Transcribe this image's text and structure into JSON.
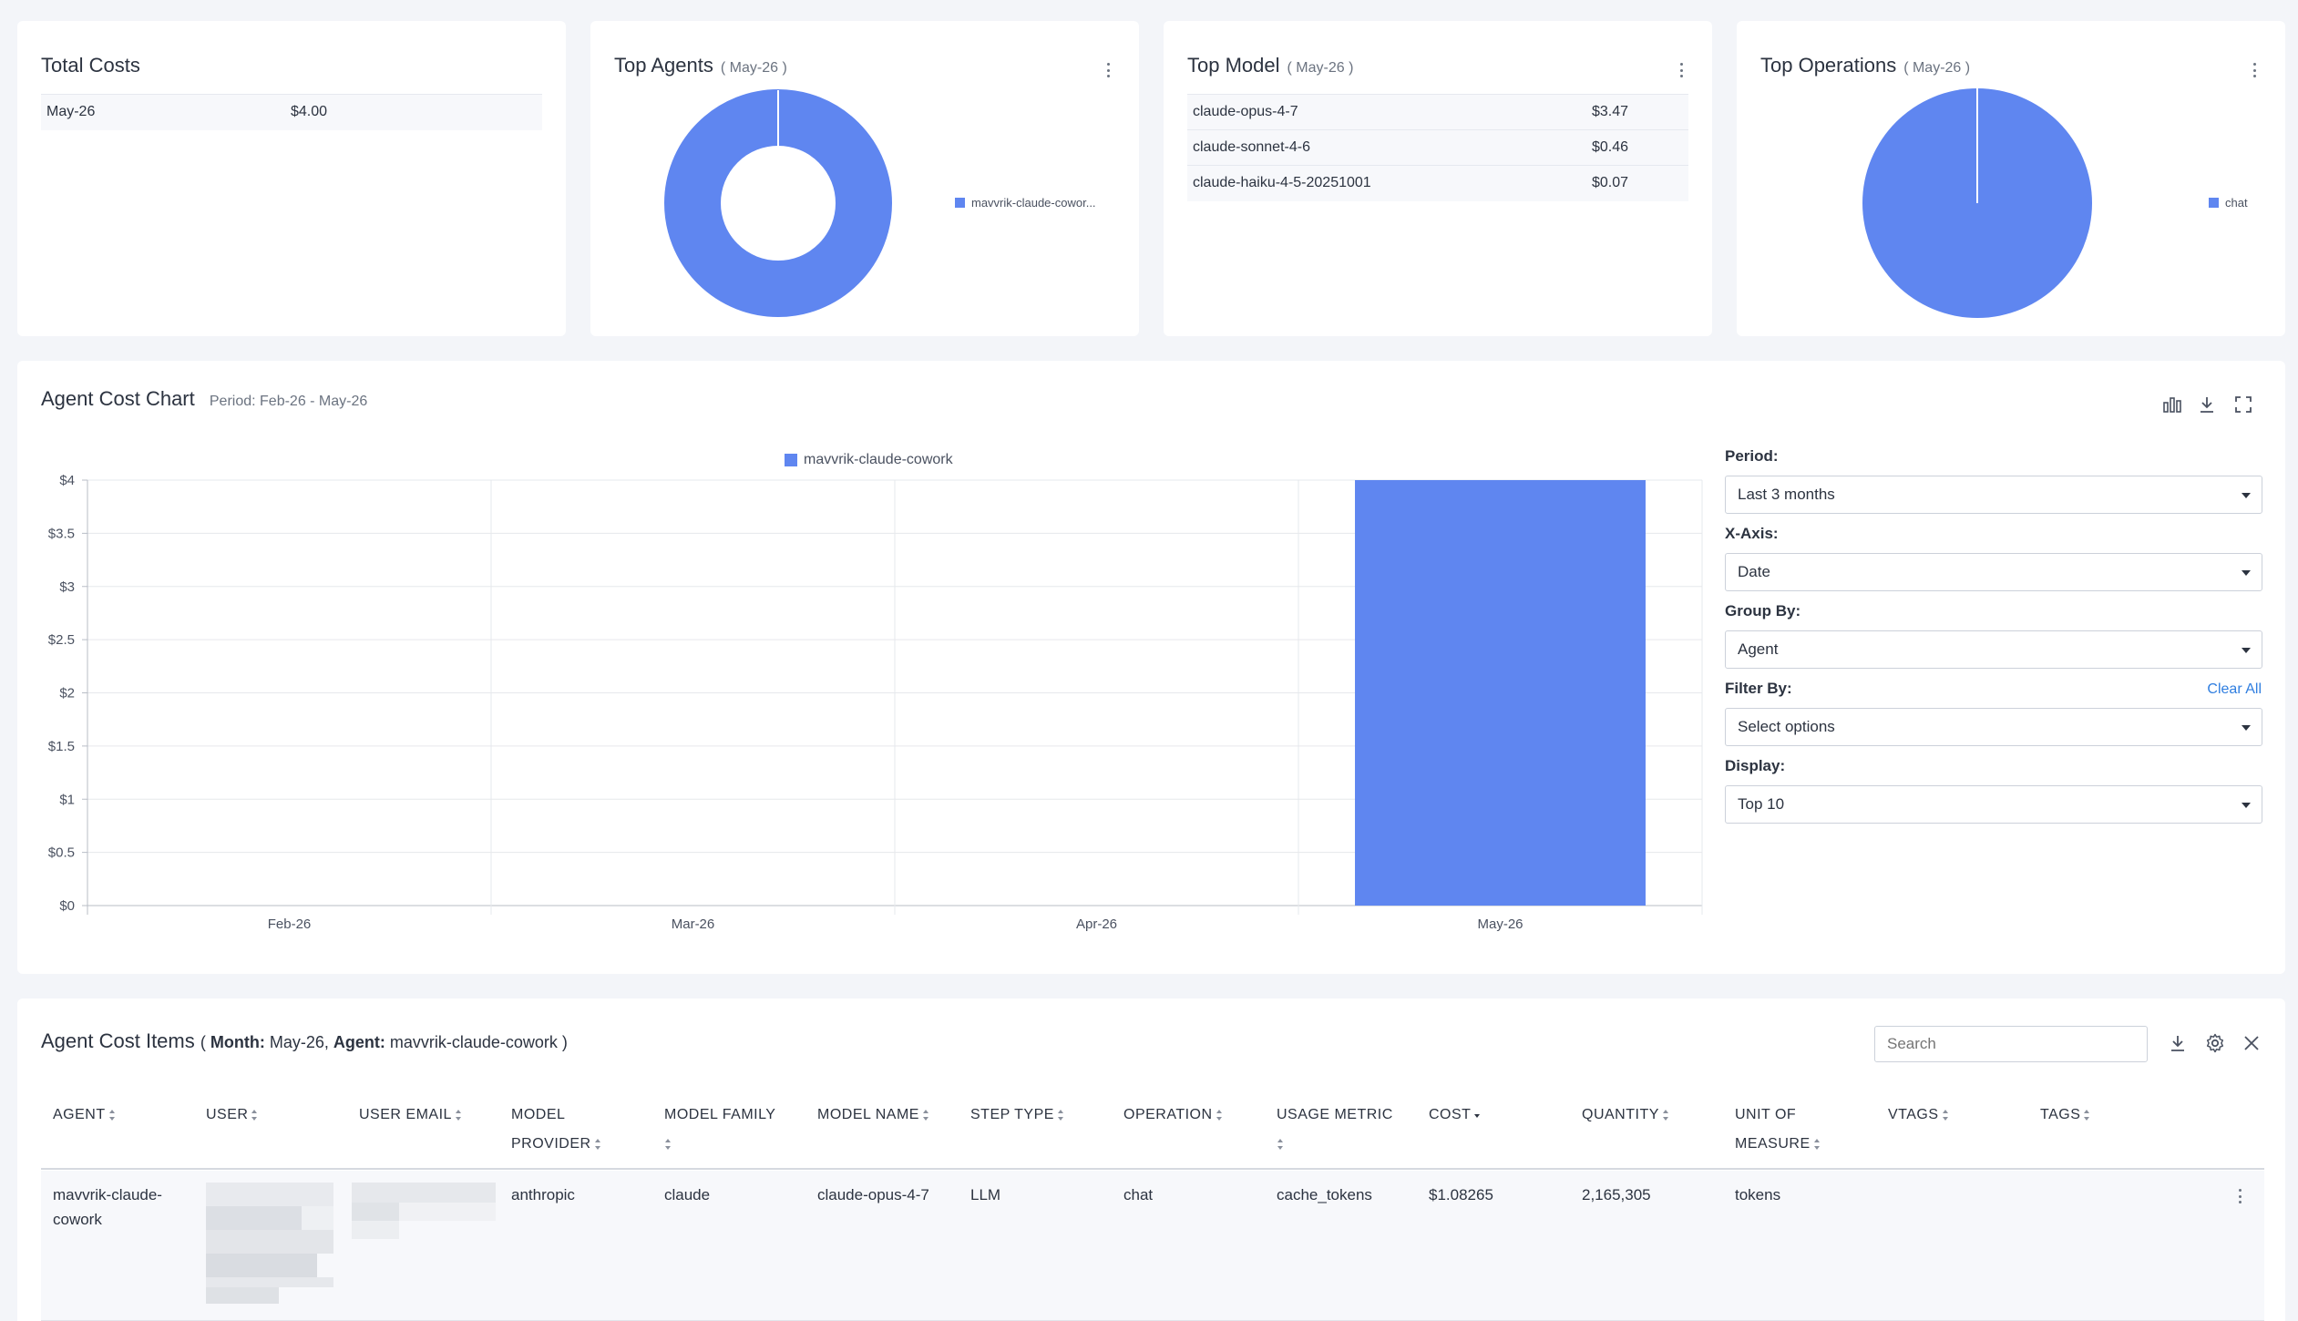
{
  "colors": {
    "accent": "#5f86f0",
    "link": "#2f7ee0"
  },
  "total_costs": {
    "title": "Total Costs",
    "rows": [
      {
        "period": "May-26",
        "amount": "$4.00"
      }
    ]
  },
  "top_agents": {
    "title": "Top Agents",
    "period": "( May-26 )",
    "legend": "mavvrik-claude-cowor...",
    "chart_data": {
      "type": "pie",
      "labels": [
        "mavvrik-claude-cowork"
      ],
      "values": [
        4.0
      ],
      "donut": true
    }
  },
  "top_model": {
    "title": "Top Model",
    "period": "( May-26 )",
    "rows": [
      {
        "model": "claude-opus-4-7",
        "cost": "$3.47"
      },
      {
        "model": "claude-sonnet-4-6",
        "cost": "$0.46"
      },
      {
        "model": "claude-haiku-4-5-20251001",
        "cost": "$0.07"
      }
    ]
  },
  "top_operations": {
    "title": "Top Operations",
    "period": "( May-26 )",
    "legend": "chat",
    "chart_data": {
      "type": "pie",
      "labels": [
        "chat"
      ],
      "values": [
        4.0
      ],
      "donut": false
    }
  },
  "agent_cost_chart": {
    "title": "Agent Cost Chart",
    "period_label": "Period: Feb-26 - May-26",
    "icons": [
      "bar-chart-icon",
      "download-icon",
      "fullscreen-icon"
    ],
    "chart_data": {
      "type": "bar",
      "categories": [
        "Feb-26",
        "Mar-26",
        "Apr-26",
        "May-26"
      ],
      "series": [
        {
          "name": "mavvrik-claude-cowork",
          "values": [
            0,
            0,
            0,
            4.0
          ]
        }
      ],
      "yticks": [
        "$0",
        "$0.5",
        "$1",
        "$1.5",
        "$2",
        "$2.5",
        "$3",
        "$3.5",
        "$4"
      ],
      "ylim": [
        0,
        4
      ],
      "grid": true,
      "legend_position": "top"
    },
    "controls": {
      "period_label": "Period:",
      "period_value": "Last 3 months",
      "xaxis_label": "X-Axis:",
      "xaxis_value": "Date",
      "groupby_label": "Group By:",
      "groupby_value": "Agent",
      "filterby_label": "Filter By:",
      "filterby_placeholder": "Select options",
      "clear_all": "Clear All",
      "display_label": "Display:",
      "display_value": "Top 10"
    }
  },
  "cost_items": {
    "title": "Agent Cost Items",
    "filter_open": "( ",
    "month_key": "Month:",
    "month_value": " May-26, ",
    "agent_key": "Agent:",
    "agent_value": " mavvrik-claude-cowork )",
    "search_placeholder": "Search",
    "columns": {
      "agent": "AGENT",
      "user": "USER",
      "user_email": "USER EMAIL",
      "model_provider_1": "MODEL",
      "model_provider_2": "PROVIDER",
      "model_family": "MODEL FAMILY",
      "model_name": "MODEL NAME",
      "step_type": "STEP TYPE",
      "operation": "OPERATION",
      "usage_metric": "USAGE METRIC",
      "cost": "COST",
      "quantity": "QUANTITY",
      "unit_1": "UNIT OF",
      "unit_2": "MEASURE",
      "vtags": "VTAGS",
      "tags": "TAGS"
    },
    "rows": [
      {
        "agent_1": "mavvrik-claude-",
        "agent_2": "cowork",
        "model_provider": "anthropic",
        "model_family": "claude",
        "model_name": "claude-opus-4-7",
        "step_type": "LLM",
        "operation": "chat",
        "usage_metric": "cache_tokens",
        "cost": "$1.08265",
        "quantity": "2,165,305",
        "unit": "tokens"
      }
    ]
  }
}
